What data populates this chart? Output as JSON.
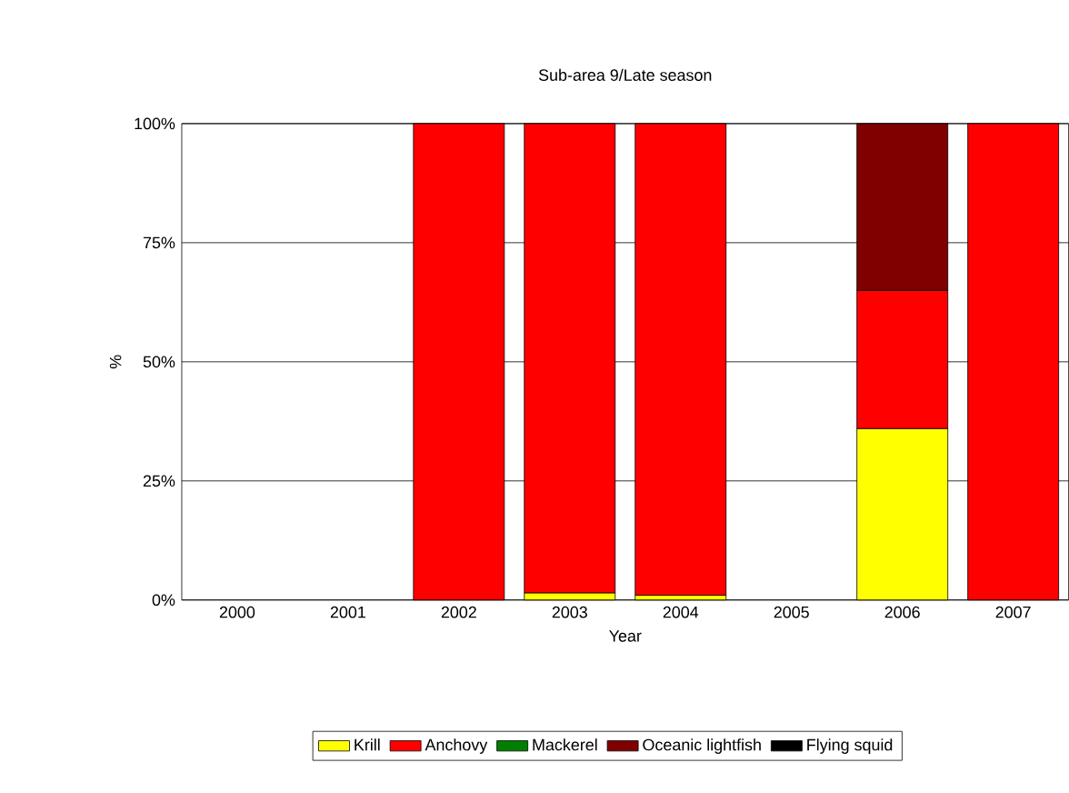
{
  "chart_data": {
    "type": "bar",
    "title": "Sub-area 9/Late season",
    "xlabel": "Year",
    "ylabel": "%",
    "stacked": true,
    "categories": [
      "2000",
      "2001",
      "2002",
      "2003",
      "2004",
      "2005",
      "2006",
      "2007"
    ],
    "series": [
      {
        "name": "Krill",
        "color": "#ffff00",
        "values": [
          null,
          null,
          0,
          1.5,
          1,
          null,
          36,
          0
        ]
      },
      {
        "name": "Anchovy",
        "color": "#ff0000",
        "values": [
          null,
          null,
          100,
          98.5,
          99,
          null,
          29,
          100
        ]
      },
      {
        "name": "Mackerel",
        "color": "#008000",
        "values": [
          null,
          null,
          0,
          0,
          0,
          null,
          0,
          0
        ]
      },
      {
        "name": "Oceanic lightfish",
        "color": "#800000",
        "values": [
          null,
          null,
          0,
          0,
          0,
          null,
          35,
          0
        ]
      },
      {
        "name": "Flying squid",
        "color": "#000000",
        "values": [
          null,
          null,
          0,
          0,
          0,
          null,
          0,
          0
        ]
      }
    ],
    "ylim": [
      0,
      100
    ],
    "yticks": [
      {
        "value": 0,
        "label": "0%"
      },
      {
        "value": 25,
        "label": "25%"
      },
      {
        "value": 50,
        "label": "50%"
      },
      {
        "value": 75,
        "label": "75%"
      },
      {
        "value": 100,
        "label": "100%"
      }
    ],
    "grid": "y",
    "legend": "bottom"
  }
}
